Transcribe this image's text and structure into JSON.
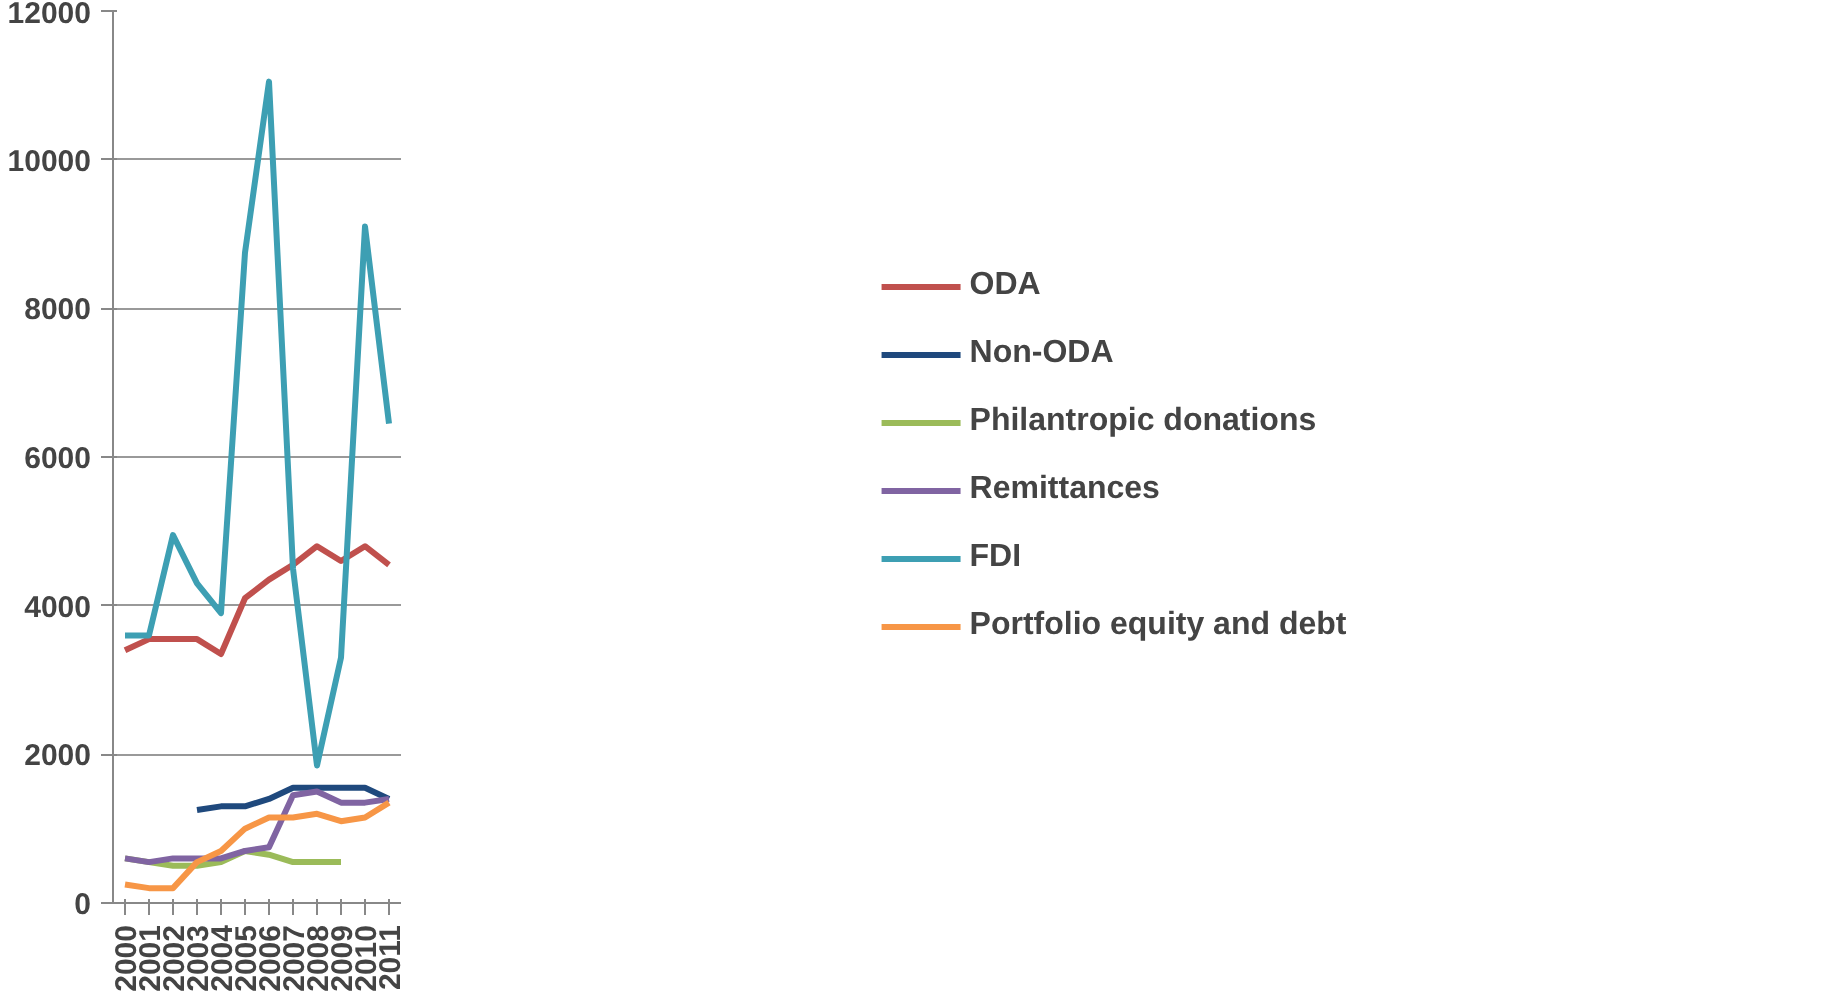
{
  "chart_data": {
    "type": "line",
    "categories": [
      "2000",
      "2001",
      "2002",
      "2003",
      "2004",
      "2005",
      "2006",
      "2007",
      "2008",
      "2009",
      "2010",
      "2011"
    ],
    "ylim": [
      0,
      12000
    ],
    "yticks": [
      0,
      2000,
      4000,
      6000,
      8000,
      10000,
      12000
    ],
    "grid": "y",
    "legend": "right",
    "marker": "none",
    "series": [
      {
        "name": "ODA",
        "color": "#c0504d",
        "values": [
          3400,
          3550,
          3550,
          3550,
          3350,
          4100,
          4350,
          4550,
          4800,
          4600,
          4800,
          4550
        ]
      },
      {
        "name": "Non-ODA",
        "color": "#1f497d",
        "values": [
          null,
          null,
          null,
          1250,
          1300,
          1300,
          1400,
          1550,
          1550,
          1550,
          1550,
          1400
        ]
      },
      {
        "name": "Philantropic donations",
        "color": "#9bbb59",
        "values": [
          600,
          550,
          500,
          500,
          550,
          700,
          650,
          550,
          550,
          550,
          null,
          null
        ]
      },
      {
        "name": "Remittances",
        "color": "#8064a2",
        "values": [
          600,
          550,
          600,
          600,
          600,
          700,
          750,
          1450,
          1500,
          1350,
          1350,
          1400
        ]
      },
      {
        "name": "FDI",
        "color": "#3d9fb3",
        "values": [
          3600,
          3600,
          4950,
          4300,
          3900,
          8750,
          11050,
          4500,
          1850,
          3300,
          9100,
          6450
        ]
      },
      {
        "name": "Portfolio equity and debt",
        "color": "#f79646",
        "values": [
          250,
          200,
          200,
          550,
          700,
          1000,
          1150,
          1150,
          1200,
          1100,
          1150,
          1350
        ]
      }
    ]
  }
}
